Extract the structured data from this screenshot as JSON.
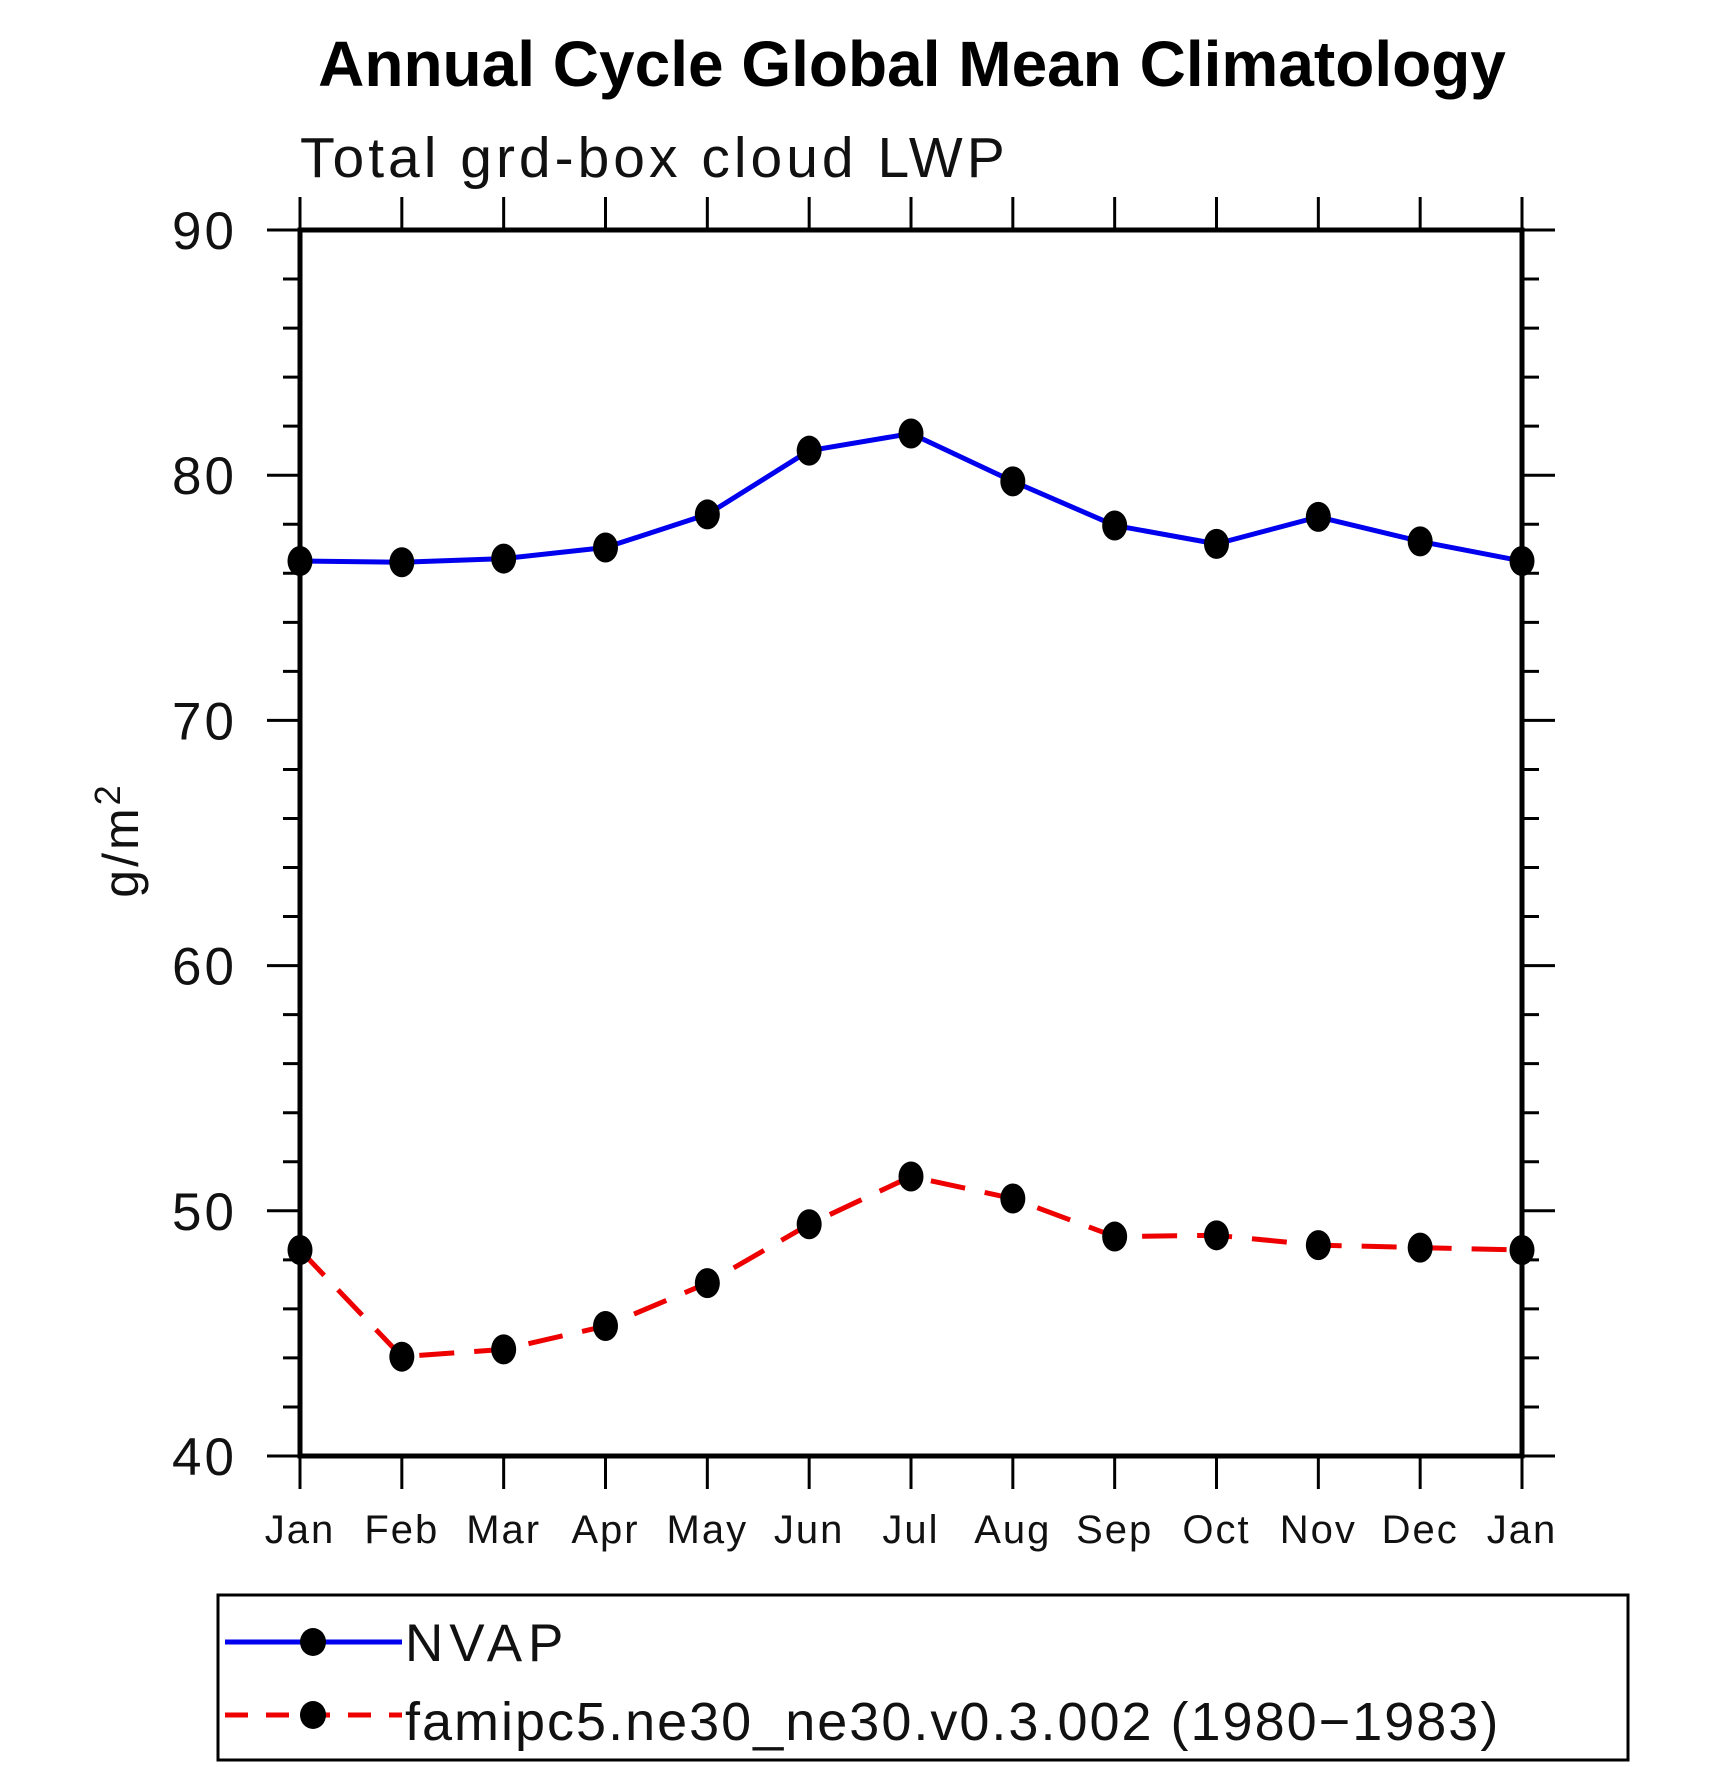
{
  "title": "Annual Cycle Global Mean Climatology",
  "subtitle": "Total grd-box cloud LWP",
  "ylabel": {
    "base": "g/m",
    "exponent": "2"
  },
  "legend": [
    {
      "label": "NVAP",
      "color": "#0000ee",
      "style": "solid",
      "marker": "filled-dot"
    },
    {
      "label": "famipc5.ne30_ne30.v0.3.002 (1980−1983)",
      "color": "#ee0000",
      "style": "dashed",
      "marker": "filled-dot"
    }
  ],
  "chart_data": {
    "type": "line",
    "title": "Annual Cycle Global Mean Climatology",
    "subtitle": "Total grd-box cloud LWP",
    "xlabel": "",
    "ylabel": "g/m2",
    "categories": [
      "Jan",
      "Feb",
      "Mar",
      "Apr",
      "May",
      "Jun",
      "Jul",
      "Aug",
      "Sep",
      "Oct",
      "Nov",
      "Dec",
      "Jan"
    ],
    "series": [
      {
        "name": "NVAP",
        "color": "#0000ee",
        "line_style": "solid",
        "marker": "filled-dot",
        "marker_color": "#000000",
        "values": [
          76.5,
          76.45,
          76.6,
          77.05,
          78.4,
          81.0,
          81.7,
          79.75,
          77.95,
          77.2,
          78.3,
          77.3,
          76.5
        ]
      },
      {
        "name": "famipc5.ne30_ne30.v0.3.002 (1980−1983)",
        "color": "#ee0000",
        "line_style": "dashed",
        "marker": "filled-dot",
        "marker_color": "#000000",
        "values": [
          48.4,
          44.05,
          44.35,
          45.3,
          47.05,
          49.45,
          51.4,
          50.5,
          48.95,
          49.0,
          48.6,
          48.5,
          48.4
        ]
      }
    ],
    "ylim": [
      40,
      90
    ],
    "yticks_major": [
      90,
      80,
      70,
      60,
      50,
      40
    ],
    "ytick_minor_step": 2,
    "grid": false,
    "legend_position": "bottom-box"
  }
}
